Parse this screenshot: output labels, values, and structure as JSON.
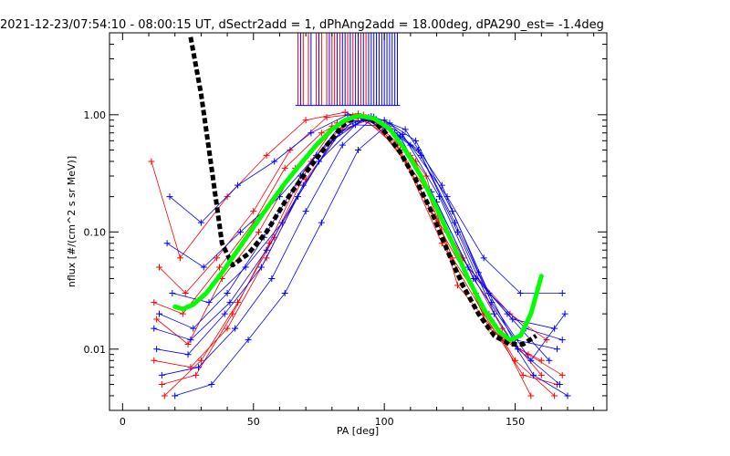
{
  "chart_data": {
    "type": "line",
    "title": "2021-12-23/07:54:10 - 08:00:15 UT, dSectr2add = 1, dPhAng2add = 18.00deg, dPA290_est=  -1.4deg",
    "xlabel": "PA [deg]",
    "ylabel": "nflux [#/(cm^2 s sr MeV)]",
    "xlim": [
      -5,
      185
    ],
    "ylim": [
      0.003,
      5.0
    ],
    "yscale": "log",
    "grid": false,
    "x_ticks": [
      0,
      50,
      100,
      150
    ],
    "x_tick_labels": [
      "0",
      "50",
      "100",
      "150"
    ],
    "y_ticks": [
      0.01,
      0.1,
      1.0
    ],
    "y_tick_labels": [
      "0.01",
      "0.10",
      "1.00"
    ],
    "colors": {
      "red": "#ff0000",
      "blue": "#0000ff",
      "fit_black": "#000000",
      "fit_green": "#00ff00"
    },
    "series": [
      {
        "color": "red",
        "style": "thin-line-plus",
        "x": [
          11,
          22,
          40,
          55,
          70,
          85,
          90,
          100,
          115,
          130,
          145,
          160
        ],
        "y": [
          0.4,
          0.06,
          0.2,
          0.45,
          0.9,
          1.05,
          0.95,
          0.7,
          0.25,
          0.06,
          0.015,
          0.006
        ]
      },
      {
        "color": "red",
        "style": "thin-line-plus",
        "x": [
          13,
          25,
          38,
          52,
          66,
          80,
          92,
          105,
          120,
          135,
          150,
          165
        ],
        "y": [
          0.018,
          0.011,
          0.04,
          0.1,
          0.35,
          0.8,
          1.0,
          0.55,
          0.12,
          0.03,
          0.008,
          0.004
        ]
      },
      {
        "color": "red",
        "style": "thin-line-plus",
        "x": [
          12,
          26,
          40,
          55,
          70,
          84,
          95,
          108,
          122,
          138,
          153,
          166
        ],
        "y": [
          0.008,
          0.007,
          0.015,
          0.06,
          0.28,
          0.75,
          0.92,
          0.4,
          0.08,
          0.02,
          0.006,
          0.005
        ]
      },
      {
        "color": "red",
        "style": "thin-line-plus",
        "x": [
          14,
          24,
          36,
          50,
          64,
          78,
          90,
          102,
          116,
          128,
          145,
          160
        ],
        "y": [
          0.05,
          0.03,
          0.06,
          0.15,
          0.5,
          0.95,
          1.02,
          0.8,
          0.3,
          0.035,
          0.012,
          0.008
        ]
      },
      {
        "color": "red",
        "style": "thin-line-plus",
        "x": [
          15,
          28,
          42,
          56,
          68,
          82,
          93,
          106,
          118,
          132,
          148,
          162
        ],
        "y": [
          0.005,
          0.006,
          0.02,
          0.08,
          0.3,
          0.85,
          0.9,
          0.5,
          0.15,
          0.05,
          0.02,
          0.012
        ]
      },
      {
        "color": "red",
        "style": "thin-line-plus",
        "x": [
          12,
          23,
          37,
          50,
          62,
          76,
          88,
          100,
          112,
          126,
          140,
          156
        ],
        "y": [
          0.025,
          0.02,
          0.05,
          0.12,
          0.35,
          0.7,
          0.98,
          0.85,
          0.4,
          0.06,
          0.02,
          0.004
        ]
      },
      {
        "color": "red",
        "style": "thin-line-plus",
        "x": [
          16,
          30,
          44,
          58,
          72,
          86,
          96,
          110,
          124,
          140,
          155,
          168
        ],
        "y": [
          0.004,
          0.008,
          0.025,
          0.09,
          0.4,
          0.9,
          0.88,
          0.45,
          0.1,
          0.015,
          0.009,
          0.006
        ]
      },
      {
        "color": "blue",
        "style": "thin-line-plus",
        "x": [
          18,
          30,
          44,
          58,
          72,
          86,
          98,
          110,
          124,
          138,
          152,
          168
        ],
        "y": [
          0.2,
          0.12,
          0.25,
          0.4,
          0.7,
          1.0,
          0.85,
          0.55,
          0.2,
          0.06,
          0.03,
          0.03
        ]
      },
      {
        "color": "blue",
        "style": "thin-line-plus",
        "x": [
          14,
          27,
          40,
          54,
          68,
          82,
          94,
          106,
          120,
          134,
          150,
          166
        ],
        "y": [
          0.02,
          0.015,
          0.03,
          0.09,
          0.3,
          0.75,
          0.95,
          0.65,
          0.18,
          0.04,
          0.012,
          0.01
        ]
      },
      {
        "color": "blue",
        "style": "thin-line-plus",
        "x": [
          13,
          25,
          39,
          53,
          67,
          80,
          92,
          104,
          118,
          132,
          147,
          163
        ],
        "y": [
          0.01,
          0.009,
          0.02,
          0.05,
          0.2,
          0.6,
          0.92,
          0.7,
          0.22,
          0.05,
          0.02,
          0.008
        ]
      },
      {
        "color": "blue",
        "style": "thin-line-plus",
        "x": [
          17,
          31,
          45,
          60,
          74,
          88,
          100,
          112,
          126,
          140,
          154,
          168
        ],
        "y": [
          0.08,
          0.05,
          0.1,
          0.2,
          0.45,
          0.88,
          0.9,
          0.6,
          0.15,
          0.03,
          0.015,
          0.012
        ]
      },
      {
        "color": "blue",
        "style": "thin-line-plus",
        "x": [
          15,
          29,
          43,
          57,
          70,
          84,
          96,
          108,
          122,
          136,
          151,
          167
        ],
        "y": [
          0.006,
          0.007,
          0.015,
          0.04,
          0.15,
          0.55,
          0.96,
          0.75,
          0.25,
          0.045,
          0.01,
          0.005
        ]
      },
      {
        "color": "blue",
        "style": "thin-line-plus",
        "x": [
          19,
          33,
          47,
          61,
          75,
          89,
          101,
          113,
          127,
          141,
          156,
          169
        ],
        "y": [
          0.03,
          0.025,
          0.05,
          0.12,
          0.4,
          0.82,
          0.8,
          0.5,
          0.12,
          0.025,
          0.008,
          0.02
        ]
      },
      {
        "color": "blue",
        "style": "thin-line-plus",
        "x": [
          12,
          26,
          41,
          55,
          69,
          83,
          95,
          107,
          121,
          135,
          149,
          165
        ],
        "y": [
          0.015,
          0.012,
          0.025,
          0.07,
          0.25,
          0.7,
          0.97,
          0.68,
          0.2,
          0.04,
          0.018,
          0.015
        ]
      },
      {
        "color": "blue",
        "style": "thin-line-plus",
        "x": [
          20,
          34,
          48,
          62,
          76,
          90,
          102,
          114,
          128,
          142,
          157,
          170
        ],
        "y": [
          0.004,
          0.005,
          0.012,
          0.03,
          0.12,
          0.5,
          0.85,
          0.45,
          0.1,
          0.02,
          0.006,
          0.004
        ]
      },
      {
        "color": "fit_black",
        "style": "dashed-thick",
        "x": [
          26,
          30,
          34,
          38,
          42,
          48,
          55,
          62,
          70,
          78,
          85,
          90,
          95,
          100,
          106,
          112,
          118,
          124,
          130,
          136,
          142,
          148,
          153,
          158
        ],
        "y": [
          4.6,
          1.5,
          0.35,
          0.08,
          0.052,
          0.065,
          0.1,
          0.18,
          0.32,
          0.55,
          0.85,
          0.98,
          0.92,
          0.72,
          0.48,
          0.28,
          0.15,
          0.07,
          0.035,
          0.02,
          0.013,
          0.011,
          0.011,
          0.013
        ]
      },
      {
        "color": "fit_green",
        "style": "dotted-thick",
        "x": [
          20,
          23,
          27,
          32,
          38,
          44,
          50,
          56,
          62,
          68,
          74,
          80,
          85,
          90,
          96,
          102,
          108,
          114,
          120,
          126,
          132,
          138,
          144,
          148,
          152,
          156,
          160
        ],
        "y": [
          0.023,
          0.022,
          0.024,
          0.03,
          0.045,
          0.07,
          0.11,
          0.17,
          0.26,
          0.38,
          0.55,
          0.75,
          0.9,
          0.98,
          0.93,
          0.76,
          0.5,
          0.3,
          0.16,
          0.08,
          0.04,
          0.022,
          0.014,
          0.012,
          0.013,
          0.02,
          0.042
        ]
      }
    ],
    "vertical_markers": {
      "style": "thin vertical lines between y=1.2 and the top axis",
      "red_x": [
        67,
        69,
        71,
        74,
        76,
        78,
        80,
        81,
        83,
        86,
        88,
        91,
        93
      ],
      "blue_x": [
        68,
        72,
        75,
        79,
        82,
        84,
        85,
        87,
        89,
        90,
        92,
        94,
        95,
        96,
        97,
        98,
        99,
        100,
        101,
        102,
        103,
        104,
        105
      ]
    }
  }
}
